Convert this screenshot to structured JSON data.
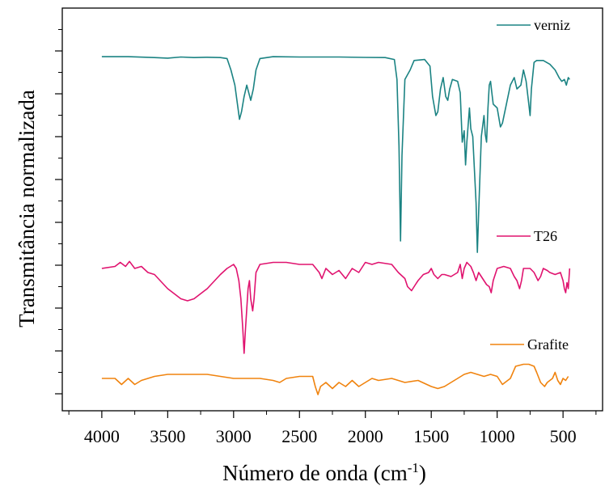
{
  "chart_data": {
    "type": "line",
    "title": "",
    "xlabel": "Número de onda (cm",
    "xlabel_sup": "-1",
    "xlabel_suffix": ")",
    "ylabel": "Transmitância normalizada",
    "x_reversed": true,
    "xlim": [
      4300,
      200
    ],
    "x_ticks": [
      4000,
      3500,
      3000,
      2500,
      2000,
      1500,
      1000,
      500
    ],
    "x_tick_labels": [
      "4000",
      "3500",
      "3000",
      "2500",
      "2000",
      "1500",
      "1000",
      "500"
    ],
    "y_tick_labels_shown": false,
    "grid": false,
    "legend": "inline-per-series",
    "series": [
      {
        "name": "verniz",
        "color": "#1b8383",
        "points": [
          [
            4000,
            0.97
          ],
          [
            3800,
            0.97
          ],
          [
            3600,
            0.965
          ],
          [
            3500,
            0.962
          ],
          [
            3400,
            0.968
          ],
          [
            3300,
            0.965
          ],
          [
            3200,
            0.967
          ],
          [
            3100,
            0.965
          ],
          [
            3050,
            0.96
          ],
          [
            3020,
            0.9
          ],
          [
            2990,
            0.82
          ],
          [
            2955,
            0.64
          ],
          [
            2940,
            0.68
          ],
          [
            2920,
            0.76
          ],
          [
            2900,
            0.82
          ],
          [
            2870,
            0.74
          ],
          [
            2850,
            0.8
          ],
          [
            2830,
            0.9
          ],
          [
            2800,
            0.96
          ],
          [
            2700,
            0.97
          ],
          [
            2500,
            0.968
          ],
          [
            2200,
            0.968
          ],
          [
            2000,
            0.966
          ],
          [
            1850,
            0.965
          ],
          [
            1780,
            0.955
          ],
          [
            1760,
            0.85
          ],
          [
            1745,
            0.5
          ],
          [
            1733,
            0.0
          ],
          [
            1722,
            0.45
          ],
          [
            1700,
            0.85
          ],
          [
            1660,
            0.9
          ],
          [
            1630,
            0.95
          ],
          [
            1550,
            0.955
          ],
          [
            1510,
            0.92
          ],
          [
            1490,
            0.76
          ],
          [
            1465,
            0.66
          ],
          [
            1450,
            0.68
          ],
          [
            1430,
            0.8
          ],
          [
            1410,
            0.86
          ],
          [
            1390,
            0.76
          ],
          [
            1375,
            0.74
          ],
          [
            1360,
            0.8
          ],
          [
            1340,
            0.85
          ],
          [
            1300,
            0.84
          ],
          [
            1280,
            0.78
          ],
          [
            1265,
            0.52
          ],
          [
            1250,
            0.58
          ],
          [
            1240,
            0.4
          ],
          [
            1230,
            0.52
          ],
          [
            1210,
            0.7
          ],
          [
            1200,
            0.59
          ],
          [
            1185,
            0.55
          ],
          [
            1160,
            0.2
          ],
          [
            1150,
            -0.06
          ],
          [
            1140,
            0.15
          ],
          [
            1120,
            0.55
          ],
          [
            1100,
            0.66
          ],
          [
            1090,
            0.56
          ],
          [
            1080,
            0.52
          ],
          [
            1070,
            0.7
          ],
          [
            1060,
            0.82
          ],
          [
            1050,
            0.84
          ],
          [
            1040,
            0.78
          ],
          [
            1030,
            0.72
          ],
          [
            1000,
            0.7
          ],
          [
            990,
            0.66
          ],
          [
            975,
            0.6
          ],
          [
            960,
            0.62
          ],
          [
            930,
            0.72
          ],
          [
            900,
            0.82
          ],
          [
            870,
            0.86
          ],
          [
            850,
            0.8
          ],
          [
            820,
            0.82
          ],
          [
            800,
            0.9
          ],
          [
            780,
            0.84
          ],
          [
            760,
            0.72
          ],
          [
            750,
            0.66
          ],
          [
            740,
            0.8
          ],
          [
            720,
            0.94
          ],
          [
            700,
            0.95
          ],
          [
            650,
            0.95
          ],
          [
            600,
            0.93
          ],
          [
            560,
            0.9
          ],
          [
            530,
            0.86
          ],
          [
            510,
            0.84
          ],
          [
            490,
            0.85
          ],
          [
            475,
            0.82
          ],
          [
            460,
            0.86
          ],
          [
            450,
            0.85
          ]
        ]
      },
      {
        "name": "T26",
        "color": "#e0136f",
        "points": [
          [
            4000,
            0.0
          ],
          [
            3900,
            0.01
          ],
          [
            3860,
            0.03
          ],
          [
            3820,
            0.01
          ],
          [
            3790,
            0.035
          ],
          [
            3750,
            0.0
          ],
          [
            3700,
            0.01
          ],
          [
            3650,
            -0.02
          ],
          [
            3600,
            -0.03
          ],
          [
            3500,
            -0.1
          ],
          [
            3400,
            -0.15
          ],
          [
            3350,
            -0.16
          ],
          [
            3300,
            -0.15
          ],
          [
            3200,
            -0.1
          ],
          [
            3100,
            -0.03
          ],
          [
            3050,
            0.0
          ],
          [
            3000,
            0.02
          ],
          [
            2980,
            0.0
          ],
          [
            2960,
            -0.06
          ],
          [
            2945,
            -0.15
          ],
          [
            2930,
            -0.3
          ],
          [
            2920,
            -0.42
          ],
          [
            2910,
            -0.3
          ],
          [
            2890,
            -0.1
          ],
          [
            2880,
            -0.06
          ],
          [
            2870,
            -0.15
          ],
          [
            2855,
            -0.21
          ],
          [
            2845,
            -0.15
          ],
          [
            2830,
            -0.02
          ],
          [
            2800,
            0.02
          ],
          [
            2700,
            0.03
          ],
          [
            2600,
            0.03
          ],
          [
            2500,
            0.02
          ],
          [
            2400,
            0.02
          ],
          [
            2350,
            -0.02
          ],
          [
            2330,
            -0.05
          ],
          [
            2300,
            0.0
          ],
          [
            2250,
            -0.03
          ],
          [
            2200,
            -0.01
          ],
          [
            2150,
            -0.05
          ],
          [
            2100,
            0.0
          ],
          [
            2050,
            -0.02
          ],
          [
            2000,
            0.03
          ],
          [
            1950,
            0.02
          ],
          [
            1900,
            0.03
          ],
          [
            1800,
            0.02
          ],
          [
            1750,
            -0.02
          ],
          [
            1700,
            -0.05
          ],
          [
            1680,
            -0.09
          ],
          [
            1650,
            -0.11
          ],
          [
            1620,
            -0.08
          ],
          [
            1600,
            -0.06
          ],
          [
            1560,
            -0.03
          ],
          [
            1520,
            -0.02
          ],
          [
            1500,
            0.0
          ],
          [
            1480,
            -0.03
          ],
          [
            1450,
            -0.05
          ],
          [
            1420,
            -0.03
          ],
          [
            1400,
            -0.03
          ],
          [
            1350,
            -0.04
          ],
          [
            1300,
            -0.02
          ],
          [
            1280,
            0.02
          ],
          [
            1265,
            -0.05
          ],
          [
            1250,
            0.0
          ],
          [
            1230,
            0.03
          ],
          [
            1200,
            0.01
          ],
          [
            1180,
            -0.02
          ],
          [
            1160,
            -0.06
          ],
          [
            1140,
            -0.02
          ],
          [
            1110,
            -0.05
          ],
          [
            1080,
            -0.08
          ],
          [
            1060,
            -0.09
          ],
          [
            1045,
            -0.12
          ],
          [
            1030,
            -0.06
          ],
          [
            1000,
            0.0
          ],
          [
            950,
            0.01
          ],
          [
            900,
            0.0
          ],
          [
            870,
            -0.04
          ],
          [
            850,
            -0.06
          ],
          [
            830,
            -0.1
          ],
          [
            815,
            -0.06
          ],
          [
            800,
            0.0
          ],
          [
            750,
            0.0
          ],
          [
            720,
            -0.02
          ],
          [
            690,
            -0.06
          ],
          [
            670,
            -0.04
          ],
          [
            650,
            0.0
          ],
          [
            620,
            -0.01
          ],
          [
            600,
            -0.02
          ],
          [
            560,
            -0.03
          ],
          [
            520,
            -0.02
          ],
          [
            500,
            -0.06
          ],
          [
            490,
            -0.1
          ],
          [
            480,
            -0.12
          ],
          [
            470,
            -0.07
          ],
          [
            460,
            -0.1
          ],
          [
            450,
            0.0
          ]
        ]
      },
      {
        "name": "Grafite",
        "color": "#f0830e",
        "points": [
          [
            4000,
            0.0
          ],
          [
            3900,
            0.0
          ],
          [
            3850,
            -0.015
          ],
          [
            3800,
            0.0
          ],
          [
            3750,
            -0.015
          ],
          [
            3700,
            -0.005
          ],
          [
            3650,
            0.0
          ],
          [
            3600,
            0.005
          ],
          [
            3500,
            0.01
          ],
          [
            3400,
            0.01
          ],
          [
            3300,
            0.01
          ],
          [
            3200,
            0.01
          ],
          [
            3100,
            0.005
          ],
          [
            3000,
            0.0
          ],
          [
            2900,
            0.0
          ],
          [
            2800,
            0.0
          ],
          [
            2700,
            -0.005
          ],
          [
            2650,
            -0.01
          ],
          [
            2600,
            0.0
          ],
          [
            2500,
            0.005
          ],
          [
            2400,
            0.005
          ],
          [
            2380,
            -0.02
          ],
          [
            2360,
            -0.04
          ],
          [
            2340,
            -0.02
          ],
          [
            2300,
            -0.01
          ],
          [
            2250,
            -0.025
          ],
          [
            2200,
            -0.01
          ],
          [
            2150,
            -0.02
          ],
          [
            2100,
            -0.005
          ],
          [
            2050,
            -0.02
          ],
          [
            2000,
            -0.01
          ],
          [
            1950,
            0.0
          ],
          [
            1900,
            -0.005
          ],
          [
            1800,
            0.0
          ],
          [
            1700,
            -0.01
          ],
          [
            1600,
            -0.005
          ],
          [
            1500,
            -0.02
          ],
          [
            1450,
            -0.025
          ],
          [
            1400,
            -0.02
          ],
          [
            1350,
            -0.01
          ],
          [
            1300,
            0.0
          ],
          [
            1250,
            0.01
          ],
          [
            1200,
            0.015
          ],
          [
            1150,
            0.01
          ],
          [
            1100,
            0.005
          ],
          [
            1050,
            0.01
          ],
          [
            1000,
            0.005
          ],
          [
            960,
            -0.015
          ],
          [
            940,
            -0.01
          ],
          [
            900,
            0.0
          ],
          [
            860,
            0.03
          ],
          [
            800,
            0.035
          ],
          [
            760,
            0.035
          ],
          [
            720,
            0.03
          ],
          [
            700,
            0.015
          ],
          [
            670,
            -0.01
          ],
          [
            640,
            -0.02
          ],
          [
            620,
            -0.01
          ],
          [
            580,
            0.0
          ],
          [
            560,
            0.015
          ],
          [
            540,
            -0.005
          ],
          [
            520,
            -0.015
          ],
          [
            500,
            0.0
          ],
          [
            480,
            -0.005
          ],
          [
            460,
            0.005
          ]
        ]
      }
    ]
  }
}
